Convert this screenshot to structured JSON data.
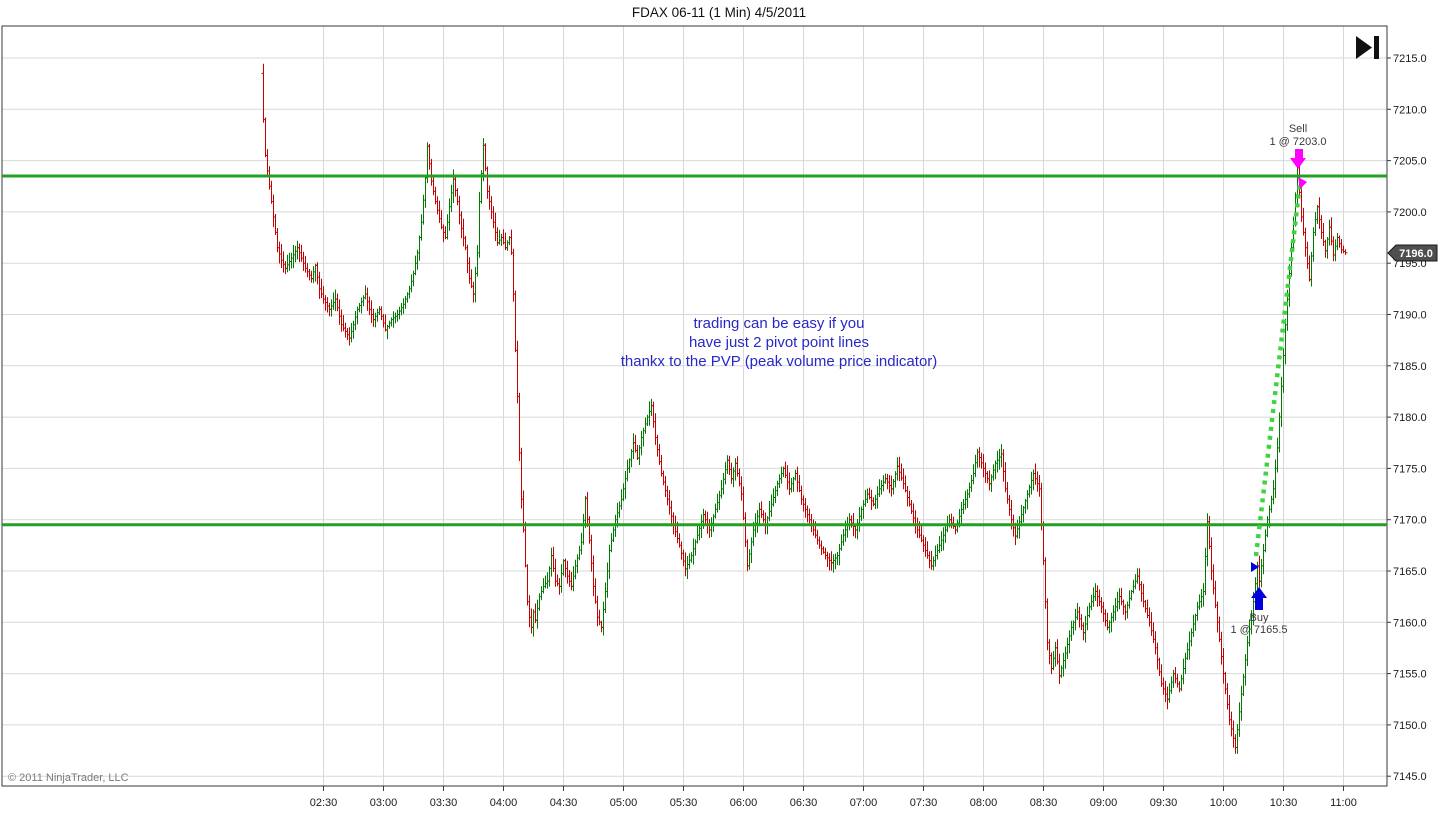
{
  "window": {
    "title": "FDAX 06-11 (1 Min)  4/5/2011"
  },
  "copyright": "© 2011 NinjaTrader, LLC",
  "note": {
    "lines": [
      "trading can be easy if you",
      "have just 2 pivot point lines",
      "thankx to the PVP (peak volume price indicator)"
    ],
    "color": "#2828C8"
  },
  "toolbar": {
    "go_to_end_tooltip": "Go to last bar"
  },
  "price_axis": {
    "tick_min": 7145,
    "tick_max": 7215,
    "tick_step": 5,
    "decimals": 1,
    "last_price_label": "7196.0"
  },
  "time_axis": {
    "labels": [
      "02:30",
      "03:00",
      "03:30",
      "04:00",
      "04:30",
      "05:00",
      "05:30",
      "06:00",
      "06:30",
      "07:00",
      "07:30",
      "08:00",
      "08:30",
      "09:00",
      "09:30",
      "10:00",
      "10:30",
      "11:00"
    ]
  },
  "chart_data": {
    "type": "ohlc-bar",
    "title": "FDAX 06-11 (1 Min)  4/5/2011",
    "symbol": "FDAX 06-11",
    "interval": "1 Min",
    "session_date": "4/5/2011",
    "start_time": "02:00",
    "minutes_per_bar": 1,
    "ylim": [
      7145,
      7215
    ],
    "grid": true,
    "last_price": 7196.0,
    "up_color": "#007A00",
    "down_color": "#C40000",
    "grid_color": "#D8D8D8",
    "pivot_color": "#22A022",
    "trade_path_color": "#3FD43F",
    "pivot_lines": [
      {
        "name": "PVP upper pivot",
        "price": 7203.5
      },
      {
        "name": "PVP lower pivot",
        "price": 7169.5
      }
    ],
    "trades": [
      {
        "side": "Buy",
        "label": "Buy",
        "fill_label": "1 @ 7165.5",
        "time": "10:18",
        "minute": 498,
        "price": 7165.5,
        "arrow_color": "#0000DD"
      },
      {
        "side": "Sell",
        "label": "Sell",
        "fill_label": "1 @ 7203.0",
        "time": "10:38",
        "minute": 518,
        "price": 7203.0,
        "arrow_color": "#FF00FF"
      }
    ],
    "price_path_minutes_price": [
      [
        0,
        7213.5
      ],
      [
        1,
        7209
      ],
      [
        2,
        7205.5
      ],
      [
        4,
        7202.5
      ],
      [
        6,
        7199.5
      ],
      [
        8,
        7196.5
      ],
      [
        10,
        7195.3
      ],
      [
        12,
        7194.5
      ],
      [
        15,
        7195.5
      ],
      [
        18,
        7196.5
      ],
      [
        20,
        7195.5
      ],
      [
        22,
        7194.5
      ],
      [
        25,
        7193.5
      ],
      [
        27,
        7194.8
      ],
      [
        29,
        7192.5
      ],
      [
        31,
        7191.5
      ],
      [
        34,
        7190.5
      ],
      [
        37,
        7191.5
      ],
      [
        40,
        7189
      ],
      [
        44,
        7187.7
      ],
      [
        46,
        7189
      ],
      [
        48,
        7190.5
      ],
      [
        52,
        7192
      ],
      [
        54,
        7190.5
      ],
      [
        56,
        7189.5
      ],
      [
        59,
        7190.5
      ],
      [
        62,
        7188.5
      ],
      [
        65,
        7189.5
      ],
      [
        68,
        7190
      ],
      [
        71,
        7191
      ],
      [
        74,
        7192.5
      ],
      [
        76,
        7194
      ],
      [
        78,
        7196
      ],
      [
        80,
        7199
      ],
      [
        82,
        7203.3
      ],
      [
        83,
        7206.4
      ],
      [
        85,
        7203
      ],
      [
        87,
        7201
      ],
      [
        90,
        7198.5
      ],
      [
        92,
        7197.5
      ],
      [
        94,
        7200.5
      ],
      [
        96,
        7203.2
      ],
      [
        98,
        7201
      ],
      [
        100,
        7198.4
      ],
      [
        102,
        7196.5
      ],
      [
        104,
        7193.5
      ],
      [
        106,
        7192
      ],
      [
        108,
        7196
      ],
      [
        109,
        7201
      ],
      [
        111,
        7206.5
      ],
      [
        113,
        7202
      ],
      [
        116,
        7199
      ],
      [
        118,
        7197
      ],
      [
        120,
        7197.5
      ],
      [
        122,
        7196.5
      ],
      [
        124,
        7197.5
      ],
      [
        125,
        7196
      ],
      [
        126,
        7192
      ],
      [
        127,
        7186.5
      ],
      [
        128,
        7182
      ],
      [
        129,
        7176.5
      ],
      [
        130,
        7172
      ],
      [
        131,
        7169
      ],
      [
        132,
        7165.5
      ],
      [
        133,
        7162
      ],
      [
        134,
        7160.5
      ],
      [
        135,
        7159.5
      ],
      [
        136,
        7161
      ],
      [
        137,
        7160.2
      ],
      [
        139,
        7162.5
      ],
      [
        141,
        7163.5
      ],
      [
        143,
        7164
      ],
      [
        145,
        7166.5
      ],
      [
        147,
        7164
      ],
      [
        149,
        7163.5
      ],
      [
        151,
        7166
      ],
      [
        153,
        7164.5
      ],
      [
        155,
        7163.5
      ],
      [
        157,
        7165.5
      ],
      [
        160,
        7167.8
      ],
      [
        162,
        7172.1
      ],
      [
        164,
        7168
      ],
      [
        166,
        7163.5
      ],
      [
        168,
        7160.5
      ],
      [
        170,
        7159.5
      ],
      [
        172,
        7163
      ],
      [
        174,
        7167
      ],
      [
        177,
        7170
      ],
      [
        180,
        7172
      ],
      [
        183,
        7175
      ],
      [
        186,
        7177.5
      ],
      [
        188,
        7176
      ],
      [
        190,
        7178
      ],
      [
        193,
        7180
      ],
      [
        195,
        7181.1
      ],
      [
        197,
        7178
      ],
      [
        200,
        7174.5
      ],
      [
        203,
        7172
      ],
      [
        206,
        7169.5
      ],
      [
        209,
        7167.5
      ],
      [
        212,
        7165.2
      ],
      [
        215,
        7166.5
      ],
      [
        218,
        7168.5
      ],
      [
        221,
        7170.5
      ],
      [
        224,
        7169
      ],
      [
        227,
        7171
      ],
      [
        230,
        7173
      ],
      [
        233,
        7175.8
      ],
      [
        235,
        7174
      ],
      [
        237,
        7175.5
      ],
      [
        240,
        7172.5
      ],
      [
        243,
        7165.5
      ],
      [
        246,
        7169
      ],
      [
        249,
        7171
      ],
      [
        252,
        7169.5
      ],
      [
        255,
        7171.5
      ],
      [
        258,
        7173.5
      ],
      [
        261,
        7175
      ],
      [
        264,
        7173
      ],
      [
        267,
        7174.5
      ],
      [
        270,
        7172
      ],
      [
        273,
        7170.5
      ],
      [
        276,
        7169
      ],
      [
        279,
        7167.5
      ],
      [
        282,
        7166.5
      ],
      [
        285,
        7165.8
      ],
      [
        288,
        7166.5
      ],
      [
        291,
        7168.5
      ],
      [
        294,
        7170
      ],
      [
        297,
        7169
      ],
      [
        300,
        7171
      ],
      [
        303,
        7172.5
      ],
      [
        306,
        7171.5
      ],
      [
        309,
        7173
      ],
      [
        312,
        7174
      ],
      [
        315,
        7173
      ],
      [
        318,
        7175.2
      ],
      [
        321,
        7173.5
      ],
      [
        324,
        7171.5
      ],
      [
        327,
        7169.5
      ],
      [
        330,
        7168
      ],
      [
        333,
        7166.5
      ],
      [
        335,
        7165.5
      ],
      [
        338,
        7167
      ],
      [
        341,
        7168.5
      ],
      [
        344,
        7170
      ],
      [
        347,
        7169
      ],
      [
        350,
        7171
      ],
      [
        353,
        7172.5
      ],
      [
        356,
        7174.5
      ],
      [
        358,
        7176.6
      ],
      [
        361,
        7175
      ],
      [
        364,
        7173.5
      ],
      [
        367,
        7175.5
      ],
      [
        370,
        7176.4
      ],
      [
        372,
        7173
      ],
      [
        375,
        7170
      ],
      [
        377,
        7168.4
      ],
      [
        380,
        7170.5
      ],
      [
        383,
        7172.5
      ],
      [
        386,
        7174.5
      ],
      [
        389,
        7173
      ],
      [
        391,
        7166
      ],
      [
        393,
        7158
      ],
      [
        395,
        7155.5
      ],
      [
        397,
        7157.5
      ],
      [
        399,
        7154.8
      ],
      [
        402,
        7157
      ],
      [
        405,
        7159.5
      ],
      [
        408,
        7161
      ],
      [
        411,
        7159
      ],
      [
        414,
        7161.5
      ],
      [
        417,
        7163
      ],
      [
        420,
        7161.5
      ],
      [
        423,
        7159.5
      ],
      [
        426,
        7161
      ],
      [
        429,
        7162.5
      ],
      [
        432,
        7161
      ],
      [
        435,
        7163
      ],
      [
        438,
        7164.5
      ],
      [
        441,
        7162
      ],
      [
        444,
        7160
      ],
      [
        447,
        7157.5
      ],
      [
        450,
        7154
      ],
      [
        453,
        7152.5
      ],
      [
        456,
        7155
      ],
      [
        459,
        7153.5
      ],
      [
        462,
        7156.5
      ],
      [
        465,
        7159
      ],
      [
        468,
        7161.5
      ],
      [
        471,
        7163
      ],
      [
        473,
        7169.8
      ],
      [
        475,
        7165
      ],
      [
        478,
        7160
      ],
      [
        481,
        7155
      ],
      [
        484,
        7150.5
      ],
      [
        487,
        7147.8
      ],
      [
        490,
        7153
      ],
      [
        493,
        7158
      ],
      [
        496,
        7162
      ],
      [
        498,
        7165.5
      ],
      [
        499,
        7164
      ],
      [
        501,
        7167
      ],
      [
        503,
        7170
      ],
      [
        506,
        7173
      ],
      [
        508,
        7177
      ],
      [
        510,
        7183
      ],
      [
        512,
        7189
      ],
      [
        514,
        7194
      ],
      [
        516,
        7199
      ],
      [
        518,
        7204.3
      ],
      [
        520,
        7199.5
      ],
      [
        522,
        7196.5
      ],
      [
        524,
        7193.4
      ],
      [
        526,
        7198
      ],
      [
        528,
        7200.5
      ],
      [
        530,
        7198
      ],
      [
        532,
        7196.2
      ],
      [
        534,
        7198.5
      ],
      [
        536,
        7195.8
      ],
      [
        538,
        7197.5
      ],
      [
        540,
        7196.3
      ],
      [
        542,
        7196.0
      ]
    ]
  }
}
